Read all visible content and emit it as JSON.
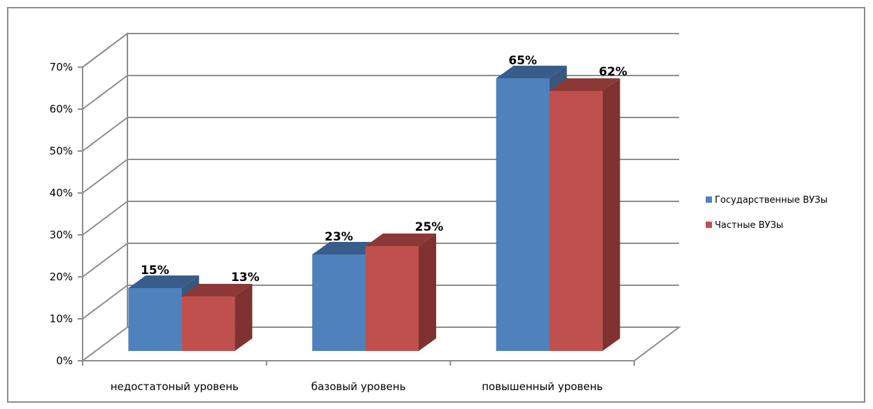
{
  "chart_data": {
    "type": "bar",
    "title": "",
    "xlabel": "",
    "ylabel": "",
    "categories": [
      "недостатоный уровень",
      "базовый уровень",
      "повышенный уровень"
    ],
    "series": [
      {
        "name": "Государственные ВУЗы",
        "values": [
          15,
          23,
          65
        ],
        "labels": [
          "15%",
          "23%",
          "65%"
        ],
        "color": "#4f81bd",
        "top_color": "#385d8a",
        "side_color": "#36587f"
      },
      {
        "name": "Частные ВУЗы",
        "values": [
          13,
          25,
          62
        ],
        "labels": [
          "13%",
          "25%",
          "62%"
        ],
        "color": "#c0504d",
        "top_color": "#8c3836",
        "side_color": "#7f3230"
      }
    ],
    "ylim": [
      0,
      70
    ],
    "yticks": [
      0,
      10,
      20,
      30,
      40,
      50,
      60,
      70
    ],
    "ytick_labels": [
      "0%",
      "10%",
      "20%",
      "30%",
      "40%",
      "50%",
      "60%",
      "70%"
    ],
    "grid": true,
    "three_d": true,
    "legend_position": "right"
  }
}
